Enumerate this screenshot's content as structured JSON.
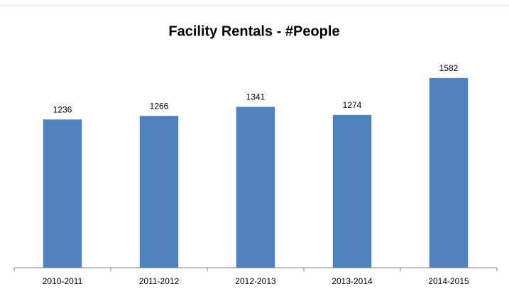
{
  "chart_data": {
    "type": "bar",
    "title": "Facility Rentals - #People",
    "categories": [
      "2010-2011",
      "2011-2012",
      "2012-2013",
      "2013-2014",
      "2014-2015"
    ],
    "values": [
      1236,
      1266,
      1341,
      1274,
      1582
    ],
    "color": "#4f81bd",
    "ylim": [
      0,
      1800
    ]
  }
}
